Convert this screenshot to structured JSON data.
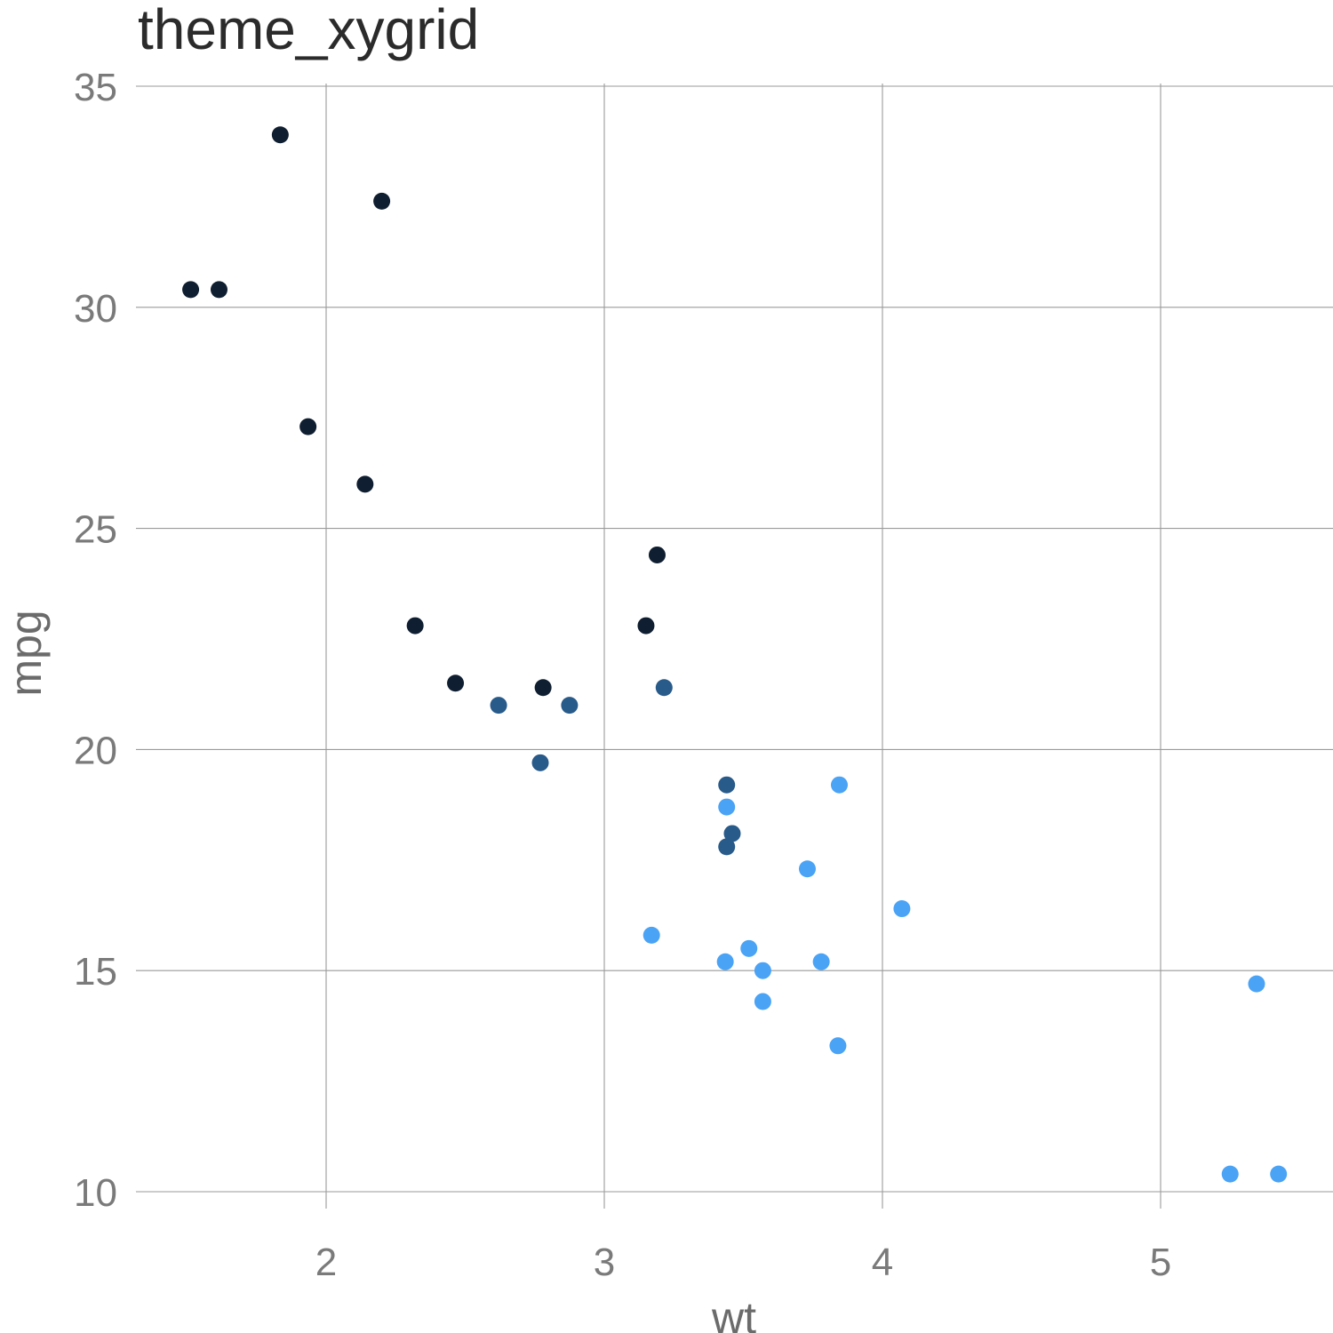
{
  "chart_data": {
    "type": "scatter",
    "title": "theme_xygrid",
    "xlabel": "wt",
    "ylabel": "mpg",
    "xlim": [
      1.32,
      5.6
    ],
    "ylim": [
      9.1,
      35.2
    ],
    "xticks": [
      2,
      3,
      4,
      5
    ],
    "yticks": [
      10,
      15,
      20,
      25,
      30,
      35
    ],
    "grid": true,
    "legend": "none",
    "point_colors": [
      "#0f1e30",
      "#285a8a",
      "#4aa3f5"
    ],
    "points": [
      {
        "x": 2.62,
        "y": 21.0,
        "c": 1
      },
      {
        "x": 2.875,
        "y": 21.0,
        "c": 1
      },
      {
        "x": 2.32,
        "y": 22.8,
        "c": 0
      },
      {
        "x": 3.215,
        "y": 21.4,
        "c": 1
      },
      {
        "x": 3.44,
        "y": 18.7,
        "c": 2
      },
      {
        "x": 3.46,
        "y": 18.1,
        "c": 1
      },
      {
        "x": 3.57,
        "y": 14.3,
        "c": 2
      },
      {
        "x": 3.19,
        "y": 24.4,
        "c": 0
      },
      {
        "x": 3.15,
        "y": 22.8,
        "c": 0
      },
      {
        "x": 3.44,
        "y": 19.2,
        "c": 1
      },
      {
        "x": 3.44,
        "y": 17.8,
        "c": 1
      },
      {
        "x": 4.07,
        "y": 16.4,
        "c": 2
      },
      {
        "x": 3.73,
        "y": 17.3,
        "c": 2
      },
      {
        "x": 3.78,
        "y": 15.2,
        "c": 2
      },
      {
        "x": 5.25,
        "y": 10.4,
        "c": 2
      },
      {
        "x": 5.424,
        "y": 10.4,
        "c": 2
      },
      {
        "x": 5.345,
        "y": 14.7,
        "c": 2
      },
      {
        "x": 2.2,
        "y": 32.4,
        "c": 0
      },
      {
        "x": 1.615,
        "y": 30.4,
        "c": 0
      },
      {
        "x": 1.835,
        "y": 33.9,
        "c": 0
      },
      {
        "x": 2.465,
        "y": 21.5,
        "c": 0
      },
      {
        "x": 3.52,
        "y": 15.5,
        "c": 2
      },
      {
        "x": 3.435,
        "y": 15.2,
        "c": 2
      },
      {
        "x": 3.84,
        "y": 13.3,
        "c": 2
      },
      {
        "x": 3.845,
        "y": 19.2,
        "c": 2
      },
      {
        "x": 1.935,
        "y": 27.3,
        "c": 0
      },
      {
        "x": 2.14,
        "y": 26.0,
        "c": 0
      },
      {
        "x": 1.513,
        "y": 30.4,
        "c": 0
      },
      {
        "x": 3.17,
        "y": 15.8,
        "c": 2
      },
      {
        "x": 2.77,
        "y": 19.7,
        "c": 1
      },
      {
        "x": 3.57,
        "y": 15.0,
        "c": 2
      },
      {
        "x": 2.78,
        "y": 21.4,
        "c": 0
      }
    ]
  }
}
